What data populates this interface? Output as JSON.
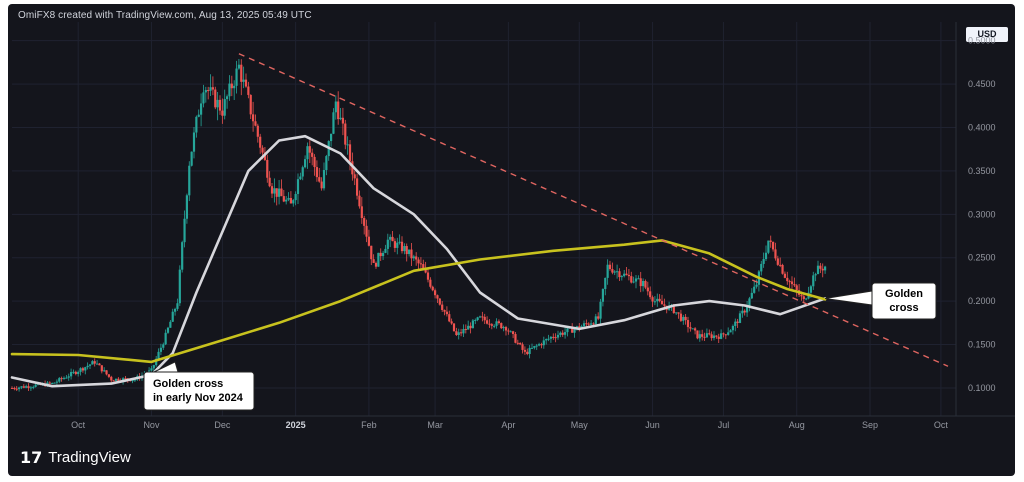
{
  "header": {
    "attribution": "OmiFX8 created with TradingView.com, Aug 13, 2025 05:49 UTC"
  },
  "footer": {
    "brand": "TradingView",
    "logo_mark": "17"
  },
  "axis": {
    "currency": "USD"
  },
  "colors": {
    "background": "#14151c",
    "grid": "#1f2230",
    "up": "#26a69a",
    "down": "#ef5350",
    "ma_fast": "#d7d7dc",
    "ma_slow": "#c8c21e",
    "trendline": "#e06560"
  },
  "chart_data": {
    "type": "candlestick",
    "y_axis": {
      "ticks": [
        "0.5000",
        "0.4500",
        "0.4000",
        "0.3500",
        "0.3000",
        "0.2500",
        "0.2000",
        "0.1500",
        "0.1000"
      ],
      "tick_values": [
        0.5,
        0.45,
        0.4,
        0.35,
        0.3,
        0.25,
        0.2,
        0.15,
        0.1
      ],
      "ylim": [
        0.07,
        0.51
      ],
      "grid": true
    },
    "x_axis": {
      "ticks": [
        {
          "label": "Oct",
          "date": "2024-10-01",
          "bold": false
        },
        {
          "label": "Nov",
          "date": "2024-11-01",
          "bold": false
        },
        {
          "label": "Dec",
          "date": "2024-12-01",
          "bold": false
        },
        {
          "label": "2025",
          "date": "2025-01-01",
          "bold": true
        },
        {
          "label": "Feb",
          "date": "2025-02-01",
          "bold": false
        },
        {
          "label": "Mar",
          "date": "2025-03-01",
          "bold": false
        },
        {
          "label": "Apr",
          "date": "2025-04-01",
          "bold": false
        },
        {
          "label": "May",
          "date": "2025-05-01",
          "bold": false
        },
        {
          "label": "Jun",
          "date": "2025-06-01",
          "bold": false
        },
        {
          "label": "Jul",
          "date": "2025-07-01",
          "bold": false
        },
        {
          "label": "Aug",
          "date": "2025-08-01",
          "bold": false
        },
        {
          "label": "Sep",
          "date": "2025-09-01",
          "bold": false
        },
        {
          "label": "Oct",
          "date": "2025-10-01",
          "bold": false
        }
      ],
      "xlim": [
        "2024-09-03",
        "2025-10-04"
      ]
    },
    "price_path": [
      [
        "2024-09-03",
        0.1
      ],
      [
        "2024-09-20",
        0.105
      ],
      [
        "2024-10-01",
        0.12
      ],
      [
        "2024-10-08",
        0.13
      ],
      [
        "2024-10-15",
        0.11
      ],
      [
        "2024-10-25",
        0.11
      ],
      [
        "2024-11-01",
        0.12
      ],
      [
        "2024-11-07",
        0.16
      ],
      [
        "2024-11-12",
        0.2
      ],
      [
        "2024-11-17",
        0.36
      ],
      [
        "2024-11-23",
        0.45
      ],
      [
        "2024-12-01",
        0.42
      ],
      [
        "2024-12-08",
        0.47
      ],
      [
        "2024-12-15",
        0.4
      ],
      [
        "2024-12-22",
        0.33
      ],
      [
        "2024-12-30",
        0.31
      ],
      [
        "2025-01-06",
        0.38
      ],
      [
        "2025-01-12",
        0.33
      ],
      [
        "2025-01-18",
        0.43
      ],
      [
        "2025-01-26",
        0.34
      ],
      [
        "2025-02-03",
        0.24
      ],
      [
        "2025-02-09",
        0.27
      ],
      [
        "2025-02-16",
        0.26
      ],
      [
        "2025-02-23",
        0.24
      ],
      [
        "2025-03-01",
        0.21
      ],
      [
        "2025-03-10",
        0.16
      ],
      [
        "2025-03-20",
        0.18
      ],
      [
        "2025-03-31",
        0.17
      ],
      [
        "2025-04-08",
        0.14
      ],
      [
        "2025-04-20",
        0.16
      ],
      [
        "2025-05-01",
        0.17
      ],
      [
        "2025-05-09",
        0.18
      ],
      [
        "2025-05-13",
        0.24
      ],
      [
        "2025-05-20",
        0.23
      ],
      [
        "2025-05-28",
        0.22
      ],
      [
        "2025-06-02",
        0.2
      ],
      [
        "2025-06-10",
        0.19
      ],
      [
        "2025-06-20",
        0.16
      ],
      [
        "2025-06-30",
        0.16
      ],
      [
        "2025-07-05",
        0.17
      ],
      [
        "2025-07-10",
        0.19
      ],
      [
        "2025-07-15",
        0.22
      ],
      [
        "2025-07-20",
        0.27
      ],
      [
        "2025-07-27",
        0.23
      ],
      [
        "2025-08-04",
        0.2
      ],
      [
        "2025-08-09",
        0.235
      ],
      [
        "2025-08-13",
        0.24
      ]
    ],
    "series": [
      {
        "name": "",
        "color": "#d7d7dc",
        "points": [
          [
            "2024-09-03",
            0.112
          ],
          [
            "2024-09-20",
            0.102
          ],
          [
            "2024-10-15",
            0.105
          ],
          [
            "2024-11-01",
            0.115
          ],
          [
            "2024-11-10",
            0.14
          ],
          [
            "2024-11-20",
            0.21
          ],
          [
            "2024-12-01",
            0.28
          ],
          [
            "2024-12-12",
            0.35
          ],
          [
            "2024-12-25",
            0.385
          ],
          [
            "2025-01-05",
            0.39
          ],
          [
            "2025-01-20",
            0.37
          ],
          [
            "2025-02-03",
            0.33
          ],
          [
            "2025-02-20",
            0.3
          ],
          [
            "2025-03-06",
            0.26
          ],
          [
            "2025-03-20",
            0.21
          ],
          [
            "2025-04-05",
            0.18
          ],
          [
            "2025-05-01",
            0.168
          ],
          [
            "2025-05-20",
            0.178
          ],
          [
            "2025-06-10",
            0.195
          ],
          [
            "2025-06-25",
            0.2
          ],
          [
            "2025-07-10",
            0.195
          ],
          [
            "2025-07-25",
            0.185
          ],
          [
            "2025-08-13",
            0.203
          ]
        ]
      },
      {
        "name": "",
        "color": "#c8c21e",
        "points": [
          [
            "2024-09-03",
            0.139
          ],
          [
            "2024-10-01",
            0.138
          ],
          [
            "2024-11-01",
            0.13
          ],
          [
            "2024-12-01",
            0.155
          ],
          [
            "2024-12-25",
            0.175
          ],
          [
            "2025-01-20",
            0.2
          ],
          [
            "2025-02-20",
            0.235
          ],
          [
            "2025-03-20",
            0.248
          ],
          [
            "2025-04-20",
            0.258
          ],
          [
            "2025-05-20",
            0.265
          ],
          [
            "2025-06-05",
            0.27
          ],
          [
            "2025-06-25",
            0.255
          ],
          [
            "2025-07-15",
            0.228
          ],
          [
            "2025-07-28",
            0.214
          ],
          [
            "2025-08-13",
            0.202
          ]
        ]
      }
    ],
    "trendline": {
      "start": [
        "2024-12-08",
        0.485
      ],
      "end": [
        "2025-10-04",
        0.125
      ],
      "style": "dashed"
    },
    "annotations": [
      {
        "text_lines": [
          "Golden cross",
          "in early Nov 2024"
        ],
        "target": [
          "2024-11-11",
          0.13
        ]
      },
      {
        "text_lines": [
          "Golden",
          "cross"
        ],
        "target": [
          "2025-08-13",
          0.203
        ]
      }
    ]
  }
}
